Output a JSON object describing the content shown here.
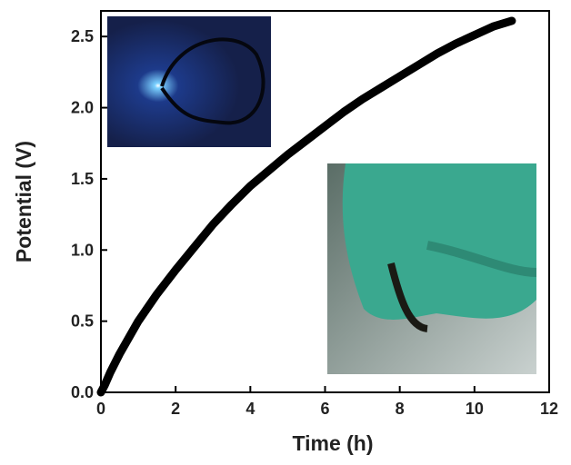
{
  "chart_data": {
    "type": "line",
    "x_label": "Time (h)",
    "y_label": "Potential (V)",
    "xlim": [
      0,
      12
    ],
    "ylim": [
      0,
      2.68
    ],
    "xticks": [
      0,
      2,
      4,
      6,
      8,
      10,
      12
    ],
    "yticks": [
      {
        "value": 0,
        "label": "0.0"
      },
      0.5,
      {
        "value": 1,
        "label": "1.0"
      },
      1.5,
      {
        "value": 2,
        "label": "2.0"
      },
      2.5
    ],
    "series": [
      {
        "color": "#000000",
        "x": [
          0,
          0.1,
          0.25,
          0.5,
          1,
          1.5,
          2,
          2.5,
          3,
          3.5,
          4,
          4.5,
          5,
          5.5,
          6,
          6.5,
          7,
          7.5,
          8,
          8.5,
          9,
          9.5,
          10,
          10.5,
          11
        ],
        "values": [
          0,
          0.05,
          0.14,
          0.27,
          0.5,
          0.69,
          0.86,
          1.02,
          1.18,
          1.32,
          1.45,
          1.56,
          1.67,
          1.77,
          1.87,
          1.97,
          2.06,
          2.14,
          2.22,
          2.3,
          2.38,
          2.45,
          2.51,
          2.57,
          2.61
        ]
      }
    ]
  }
}
